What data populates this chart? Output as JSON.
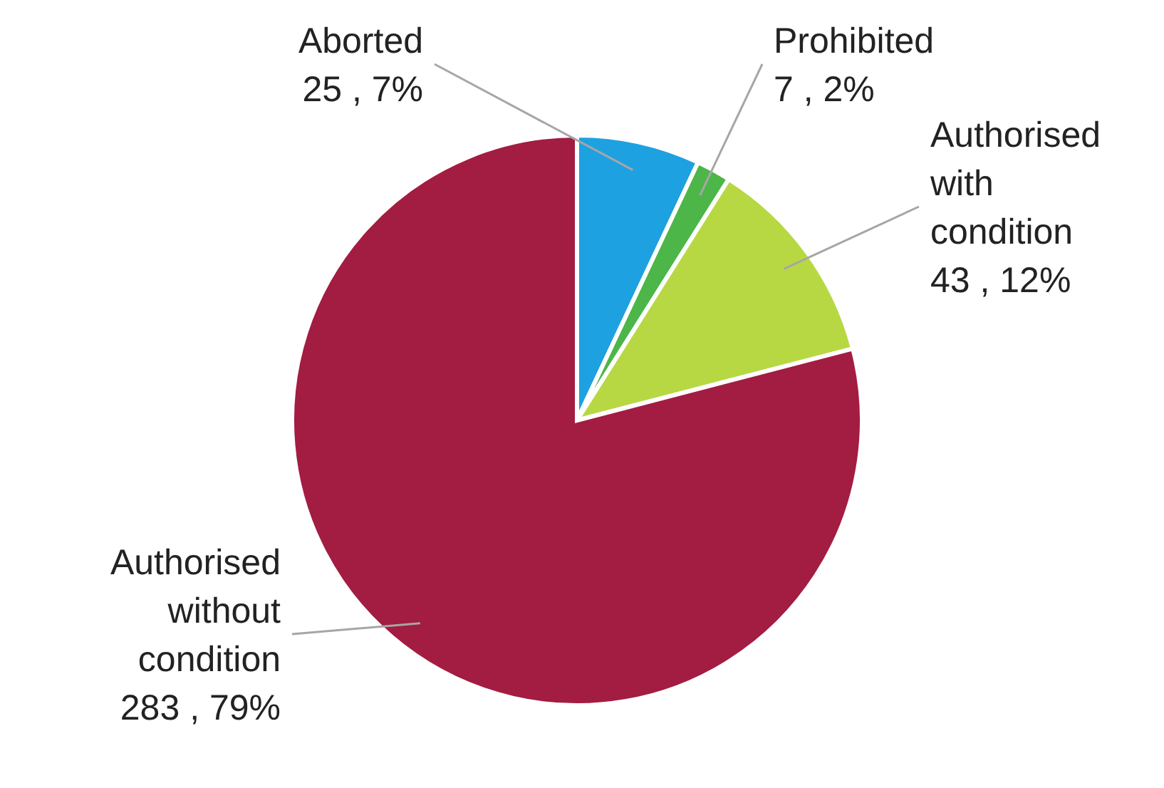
{
  "chart_data": {
    "type": "pie",
    "categories": [
      "Aborted",
      "Prohibited",
      "Authorised with condition",
      "Authorised without condition"
    ],
    "values": [
      25,
      7,
      43,
      283
    ],
    "value_labels": [
      "25 , 7%",
      "7 , 2%",
      "43 , 12%",
      "283 , 79%"
    ],
    "colors": [
      "#1ea1e1",
      "#4cb648",
      "#b8d843",
      "#a31c41"
    ]
  }
}
